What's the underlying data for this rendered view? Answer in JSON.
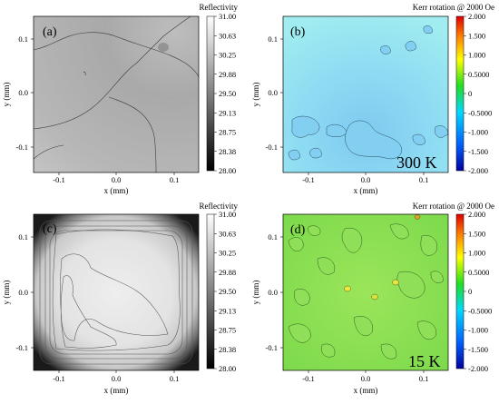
{
  "chart_data": [
    {
      "type": "heatmap",
      "panel_label": "(a)",
      "colorbar_title": "Reflectivity",
      "colorbar_ticks": [
        "31.00",
        "30.63",
        "30.25",
        "29.88",
        "29.50",
        "29.13",
        "28.75",
        "28.38",
        "28.00"
      ],
      "colorbar_range": [
        28.0,
        31.0
      ],
      "colormap": [
        "#000000",
        "#ffffff"
      ],
      "xlabel": "x (mm)",
      "ylabel": "y (mm)",
      "xticks": [
        "-0.1",
        "0.0",
        "0.1"
      ],
      "yticks": [
        "0.1",
        "0.0",
        "-0.1"
      ],
      "xlim": [
        -0.14,
        0.14
      ],
      "ylim": [
        -0.14,
        0.14
      ]
    },
    {
      "type": "heatmap",
      "panel_label": "(b)",
      "annotation": "300 K",
      "colorbar_title": "Kerr rotation @ 2000 Oe",
      "colorbar_ticks": [
        "2.000",
        "1.500",
        "1.000",
        "0.5000",
        "0",
        "-0.5000",
        "-1.000",
        "-1.500",
        "-2.000"
      ],
      "colorbar_range": [
        -2.0,
        2.0
      ],
      "colormap": [
        "#0000a0",
        "#0060ff",
        "#00d8ff",
        "#20e020",
        "#ffff00",
        "#ff8000",
        "#e00000"
      ],
      "xlabel": "x (mm)",
      "ylabel": "y (mm)",
      "xticks": [
        "-0.1",
        "0.0",
        "0.1"
      ],
      "yticks": [
        "0.1",
        "0.0",
        "-0.1"
      ],
      "xlim": [
        -0.14,
        0.14
      ],
      "ylim": [
        -0.14,
        0.14
      ]
    },
    {
      "type": "heatmap",
      "panel_label": "(c)",
      "colorbar_title": "Reflectivity",
      "colorbar_ticks": [
        "31.00",
        "30.63",
        "30.25",
        "29.88",
        "29.50",
        "29.13",
        "28.75",
        "28.38",
        "28.00"
      ],
      "colorbar_range": [
        28.0,
        31.0
      ],
      "colormap": [
        "#000000",
        "#ffffff"
      ],
      "xlabel": "x (mm)",
      "ylabel": "y (mm)",
      "xticks": [
        "-0.1",
        "0.0",
        "0.1"
      ],
      "yticks": [
        "0.1",
        "0.0",
        "-0.1"
      ],
      "xlim": [
        -0.14,
        0.14
      ],
      "ylim": [
        -0.14,
        0.14
      ]
    },
    {
      "type": "heatmap",
      "panel_label": "(d)",
      "annotation": "15 K",
      "colorbar_title": "Kerr rotation @ 2000 Oe",
      "colorbar_ticks": [
        "2.000",
        "1.500",
        "1.000",
        "0.5000",
        "0",
        "-0.5000",
        "-1.000",
        "-1.500",
        "-2.000"
      ],
      "colorbar_range": [
        -2.0,
        2.0
      ],
      "colormap": [
        "#0000a0",
        "#0060ff",
        "#00d8ff",
        "#20e020",
        "#ffff00",
        "#ff8000",
        "#e00000"
      ],
      "xlabel": "x (mm)",
      "ylabel": "y (mm)",
      "xticks": [
        "-0.1",
        "0.0",
        "0.1"
      ],
      "yticks": [
        "0.1",
        "0.0",
        "-0.1"
      ],
      "xlim": [
        -0.14,
        0.14
      ],
      "ylim": [
        -0.14,
        0.14
      ]
    }
  ]
}
